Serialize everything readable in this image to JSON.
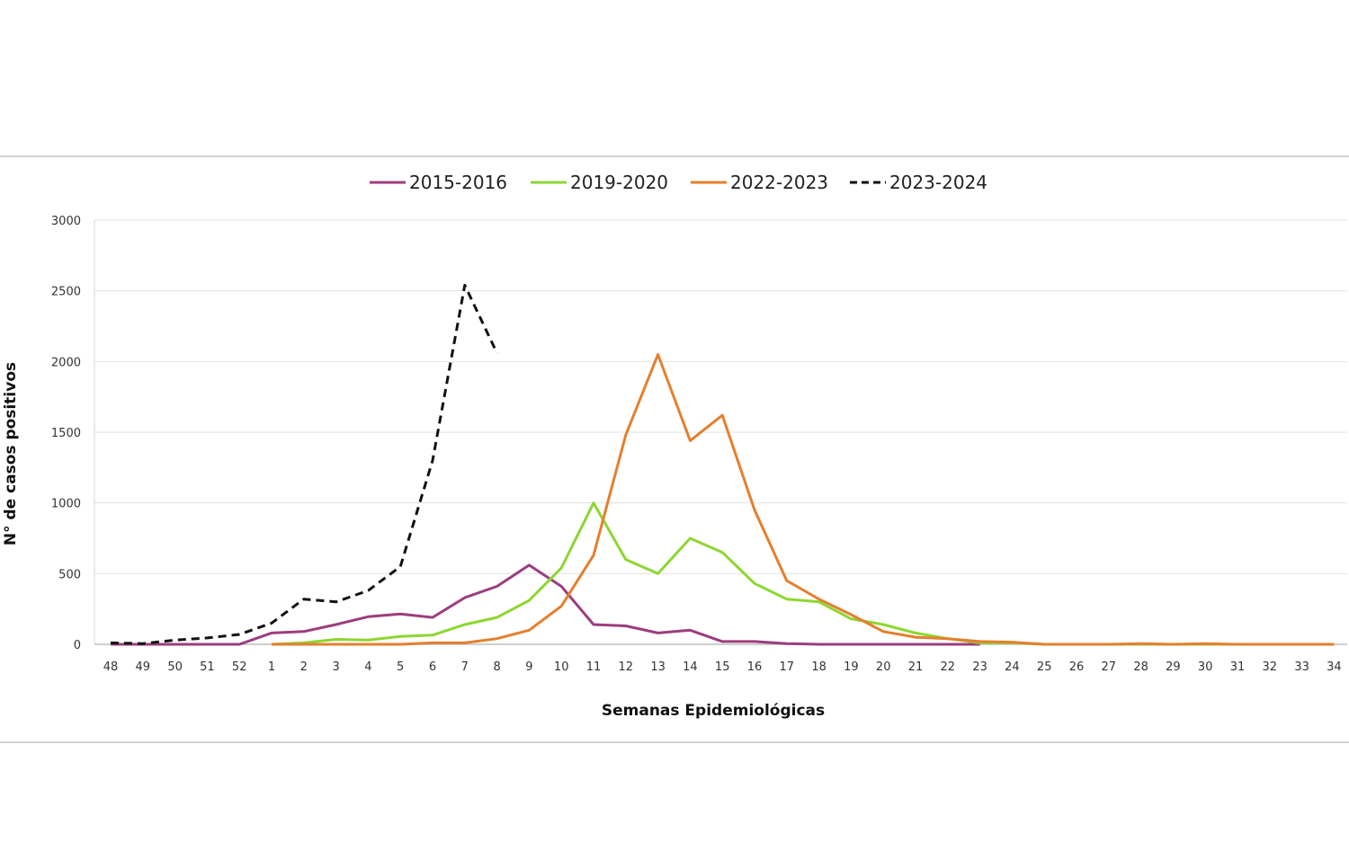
{
  "chart_data": {
    "type": "line",
    "title": "",
    "xlabel": "Semanas Epidemiológicas",
    "ylabel": "N° de casos positivos",
    "ylim": [
      0,
      3000
    ],
    "yticks": [
      "0",
      "500",
      "1000",
      "1500",
      "2000",
      "2500",
      "3000"
    ],
    "ytick_values": [
      0,
      500,
      1000,
      1500,
      2000,
      2500,
      3000
    ],
    "grid": true,
    "legend_position": "top-center",
    "categories": [
      "48",
      "49",
      "50",
      "51",
      "52",
      "1",
      "2",
      "3",
      "4",
      "5",
      "6",
      "7",
      "8",
      "9",
      "10",
      "11",
      "12",
      "13",
      "14",
      "15",
      "16",
      "17",
      "18",
      "19",
      "20",
      "21",
      "22",
      "23",
      "24",
      "25",
      "26",
      "27",
      "28",
      "29",
      "30",
      "31",
      "32",
      "33",
      "34"
    ],
    "series": [
      {
        "name": "2015-2016",
        "color": "#9c3d7e",
        "dash": false,
        "values": [
          0,
          0,
          0,
          0,
          0,
          80,
          90,
          140,
          195,
          215,
          190,
          330,
          410,
          560,
          410,
          140,
          130,
          80,
          100,
          20,
          20,
          5,
          0,
          0,
          0,
          0,
          0,
          0,
          null,
          null,
          null,
          null,
          null,
          null,
          null,
          null,
          null,
          null,
          null
        ]
      },
      {
        "name": "2019-2020",
        "color": "#8dd630",
        "dash": false,
        "values": [
          null,
          null,
          null,
          null,
          null,
          0,
          10,
          35,
          30,
          55,
          65,
          140,
          190,
          310,
          540,
          1000,
          600,
          500,
          750,
          650,
          430,
          320,
          300,
          180,
          140,
          80,
          40,
          10,
          10,
          0,
          0,
          0,
          0,
          0,
          0,
          0,
          0,
          0,
          0
        ]
      },
      {
        "name": "2022-2023",
        "color": "#e57f2e",
        "dash": false,
        "values": [
          null,
          null,
          null,
          null,
          null,
          0,
          0,
          0,
          0,
          0,
          10,
          10,
          40,
          100,
          270,
          630,
          1480,
          2050,
          1440,
          1620,
          950,
          450,
          320,
          210,
          90,
          50,
          40,
          20,
          15,
          0,
          0,
          0,
          5,
          0,
          5,
          0,
          0,
          0,
          0
        ]
      },
      {
        "name": "2023-2024",
        "color": "#111111",
        "dash": true,
        "values": [
          10,
          5,
          30,
          45,
          70,
          150,
          320,
          300,
          380,
          550,
          1300,
          2540,
          2060,
          null,
          null,
          null,
          null,
          null,
          null,
          null,
          null,
          null,
          null,
          null,
          null,
          null,
          null,
          null,
          null,
          null,
          null,
          null,
          null,
          null,
          null,
          null,
          null,
          null,
          null
        ]
      }
    ]
  }
}
